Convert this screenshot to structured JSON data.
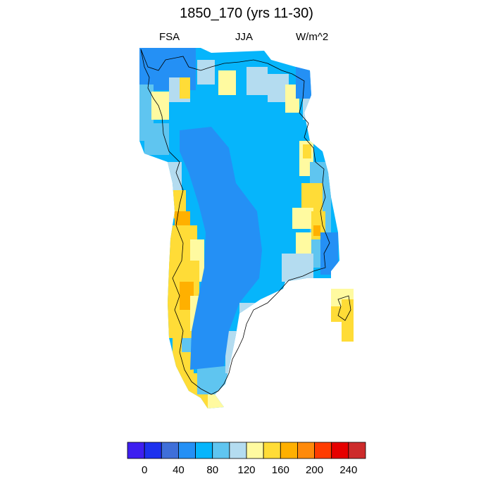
{
  "title": "1850_170 (yrs 11-30)",
  "subtitles": {
    "left": "FSA",
    "center": "JJA",
    "right": "W/m^2"
  },
  "map": {
    "region": "Greenland",
    "variable": "FSA",
    "season": "JJA",
    "units": "W/m^2",
    "has_coastline": true
  },
  "colorbar": {
    "colors": [
      "#3e1ff0",
      "#1d31ee",
      "#3f6fd9",
      "#2490f5",
      "#06b5fb",
      "#5fc5f0",
      "#b4dcf0",
      "#fffaa0",
      "#ffdc37",
      "#ffb000",
      "#ff8a0b",
      "#ff3c00",
      "#e60000",
      "#cd2b2b"
    ],
    "tick_labels": [
      "0",
      "40",
      "80",
      "120",
      "160",
      "200",
      "240"
    ]
  }
}
